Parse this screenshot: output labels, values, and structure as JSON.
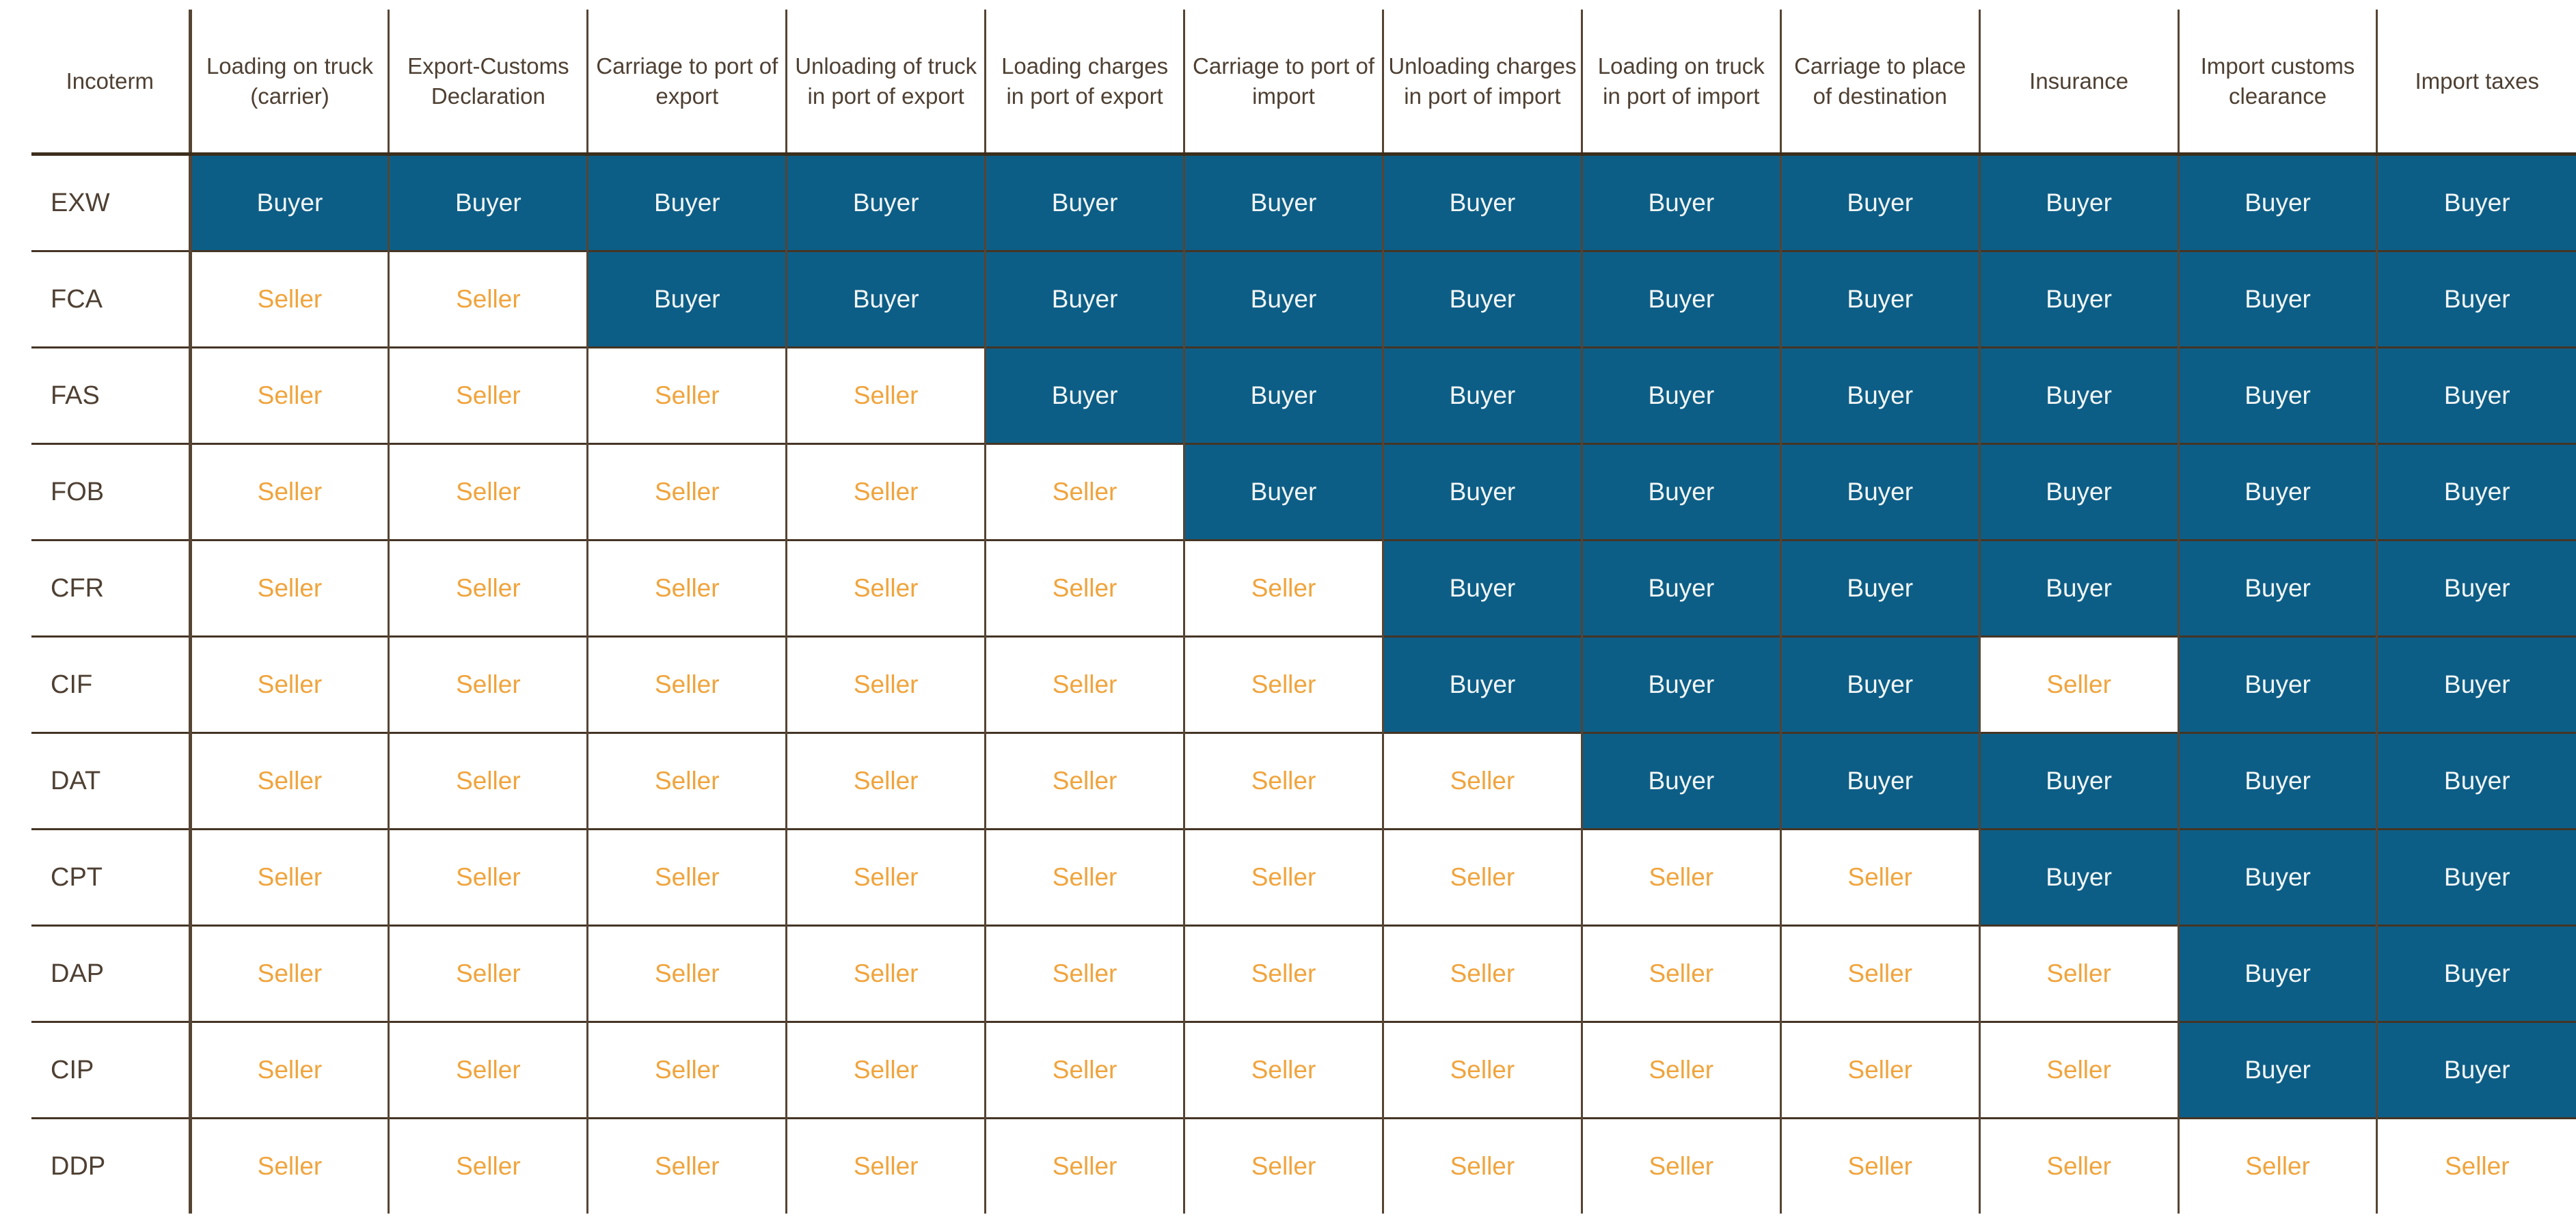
{
  "colors": {
    "buyer_bg": "#0D5E86",
    "buyer_text": "#F2F6F7",
    "seller_text": "#F0A43D",
    "label_text": "#4E4033",
    "grid_line": "#564434",
    "row_line": "#453525",
    "header_line": "#3C2E1C"
  },
  "chart_data": {
    "type": "table",
    "columns": [
      "Incoterm",
      "Loading on truck (carrier)",
      "Export-Customs Declaration",
      "Carriage to port of export",
      "Unloading of truck in port of export",
      "Loading charges in port of export",
      "Carriage to port of import",
      "Unloading charges in port of import",
      "Loading on truck in port of import",
      "Carriage to place of destination",
      "Insurance",
      "Import customs clearance",
      "Import taxes"
    ],
    "rows": [
      {
        "incoterm": "EXW",
        "values": [
          "Buyer",
          "Buyer",
          "Buyer",
          "Buyer",
          "Buyer",
          "Buyer",
          "Buyer",
          "Buyer",
          "Buyer",
          "Buyer",
          "Buyer",
          "Buyer"
        ]
      },
      {
        "incoterm": "FCA",
        "values": [
          "Seller",
          "Seller",
          "Buyer",
          "Buyer",
          "Buyer",
          "Buyer",
          "Buyer",
          "Buyer",
          "Buyer",
          "Buyer",
          "Buyer",
          "Buyer"
        ]
      },
      {
        "incoterm": "FAS",
        "values": [
          "Seller",
          "Seller",
          "Seller",
          "Seller",
          "Buyer",
          "Buyer",
          "Buyer",
          "Buyer",
          "Buyer",
          "Buyer",
          "Buyer",
          "Buyer"
        ]
      },
      {
        "incoterm": "FOB",
        "values": [
          "Seller",
          "Seller",
          "Seller",
          "Seller",
          "Seller",
          "Buyer",
          "Buyer",
          "Buyer",
          "Buyer",
          "Buyer",
          "Buyer",
          "Buyer"
        ]
      },
      {
        "incoterm": "CFR",
        "values": [
          "Seller",
          "Seller",
          "Seller",
          "Seller",
          "Seller",
          "Seller",
          "Buyer",
          "Buyer",
          "Buyer",
          "Buyer",
          "Buyer",
          "Buyer"
        ]
      },
      {
        "incoterm": "CIF",
        "values": [
          "Seller",
          "Seller",
          "Seller",
          "Seller",
          "Seller",
          "Seller",
          "Buyer",
          "Buyer",
          "Buyer",
          "Seller",
          "Buyer",
          "Buyer"
        ]
      },
      {
        "incoterm": "DAT",
        "values": [
          "Seller",
          "Seller",
          "Seller",
          "Seller",
          "Seller",
          "Seller",
          "Seller",
          "Buyer",
          "Buyer",
          "Buyer",
          "Buyer",
          "Buyer"
        ]
      },
      {
        "incoterm": "CPT",
        "values": [
          "Seller",
          "Seller",
          "Seller",
          "Seller",
          "Seller",
          "Seller",
          "Seller",
          "Seller",
          "Seller",
          "Buyer",
          "Buyer",
          "Buyer"
        ]
      },
      {
        "incoterm": "DAP",
        "values": [
          "Seller",
          "Seller",
          "Seller",
          "Seller",
          "Seller",
          "Seller",
          "Seller",
          "Seller",
          "Seller",
          "Seller",
          "Buyer",
          "Buyer"
        ]
      },
      {
        "incoterm": "CIP",
        "values": [
          "Seller",
          "Seller",
          "Seller",
          "Seller",
          "Seller",
          "Seller",
          "Seller",
          "Seller",
          "Seller",
          "Seller",
          "Buyer",
          "Buyer"
        ]
      },
      {
        "incoterm": "DDP",
        "values": [
          "Seller",
          "Seller",
          "Seller",
          "Seller",
          "Seller",
          "Seller",
          "Seller",
          "Seller",
          "Seller",
          "Seller",
          "Seller",
          "Seller"
        ]
      }
    ],
    "legend": {
      "Buyer": "blue filled cell, white text",
      "Seller": "white cell, orange text"
    },
    "layout_hints": {
      "grid": "on",
      "header_row": true,
      "first_column_is_row_label": true
    }
  }
}
